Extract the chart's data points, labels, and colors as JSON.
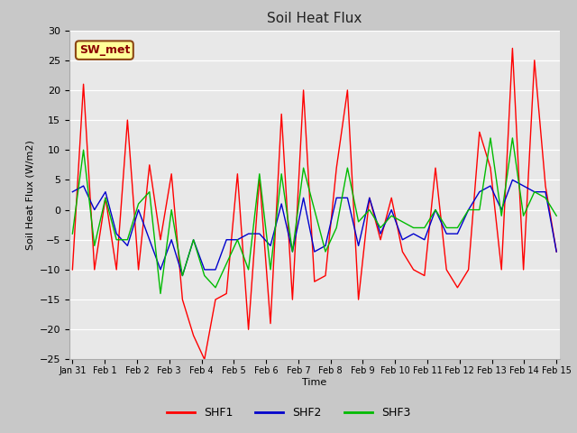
{
  "title": "Soil Heat Flux",
  "xlabel": "Time",
  "ylabel": "Soil Heat Flux (W/m2)",
  "ylim": [
    -25,
    30
  ],
  "fig_bg_color": "#c8c8c8",
  "plot_bg": "#e8e8e8",
  "annotation_text": "SW_met",
  "annotation_bg": "#ffff99",
  "annotation_border": "#8B4513",
  "annotation_text_color": "#8B0000",
  "shf1_color": "#ff0000",
  "shf2_color": "#0000cc",
  "shf3_color": "#00bb00",
  "shf1_label": "SHF1",
  "shf2_label": "SHF2",
  "shf3_label": "SHF3",
  "shf1": [
    -10,
    21,
    -10,
    2,
    -10,
    15,
    -10,
    7.5,
    -5,
    6,
    -15,
    -21,
    -25,
    -15,
    -14,
    6,
    -20,
    5.5,
    -19,
    16,
    -15,
    20,
    -12,
    -11,
    7,
    20,
    -15,
    2,
    -5,
    2,
    -7,
    -10,
    -11,
    7,
    -10,
    -13,
    -10,
    13,
    7,
    -10,
    27,
    -10,
    25,
    4,
    -7
  ],
  "shf2": [
    3,
    4,
    0,
    3,
    -4,
    -6,
    0,
    -5,
    -10,
    -5,
    -11,
    -5,
    -10,
    -10,
    -5,
    -5,
    -4,
    -4,
    -6,
    1,
    -7,
    2,
    -7,
    -6,
    2,
    2,
    -6,
    2,
    -4,
    0,
    -5,
    -4,
    -5,
    0,
    -4,
    -4,
    0,
    3,
    4,
    0,
    5,
    4,
    3,
    3,
    -7
  ],
  "shf3": [
    -4,
    10,
    -6,
    2,
    -5,
    -5,
    1,
    3,
    -14,
    0,
    -11,
    -5,
    -11,
    -13,
    -9,
    -5,
    -10,
    6,
    -10,
    6,
    -7,
    7,
    0,
    -7,
    -3,
    7,
    -2,
    0,
    -3,
    -1,
    -2,
    -3,
    -3,
    0,
    -3,
    -3,
    0,
    0,
    12,
    -1,
    12,
    -1,
    3,
    2,
    -1
  ],
  "yticks": [
    -25,
    -20,
    -15,
    -10,
    -5,
    0,
    5,
    10,
    15,
    20,
    25,
    30
  ],
  "n_points": 45,
  "tick_labels": [
    "Jan 31",
    "Feb 1",
    "Feb 2",
    "Feb 3",
    "Feb 4",
    "Feb 5",
    "Feb 6",
    "Feb 7",
    "Feb 8",
    "Feb 9",
    "Feb 10",
    "Feb 11",
    "Feb 12",
    "Feb 13",
    "Feb 14",
    "Feb 15"
  ]
}
